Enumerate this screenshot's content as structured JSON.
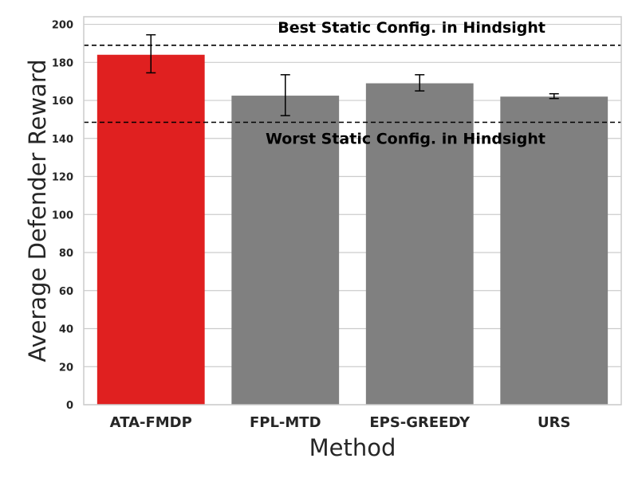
{
  "chart_data": {
    "type": "bar",
    "xlabel": "Method",
    "ylabel": "Average Defender Reward",
    "ylim": [
      0,
      204
    ],
    "yticks": [
      0,
      20,
      40,
      60,
      80,
      100,
      120,
      140,
      160,
      180,
      200
    ],
    "grid": "horizontal",
    "categories": [
      "ATA-FMDP",
      "FPL-MTD",
      "EPS-GREEDY",
      "URS"
    ],
    "values": [
      184,
      162.5,
      169,
      162
    ],
    "error_low": [
      174.5,
      152,
      165,
      161
    ],
    "error_high": [
      194.5,
      173.5,
      173.5,
      163.5
    ],
    "bar_colors": [
      "#e02020",
      "#808080",
      "#808080",
      "#808080"
    ],
    "reference_lines": [
      {
        "label": "Best Static Config. in Hindsight",
        "value": 189,
        "style": "dashed",
        "label_position": "above"
      },
      {
        "label": "Worst Static Config. in Hindsight",
        "value": 148.5,
        "style": "dashed",
        "label_position": "below"
      }
    ]
  }
}
